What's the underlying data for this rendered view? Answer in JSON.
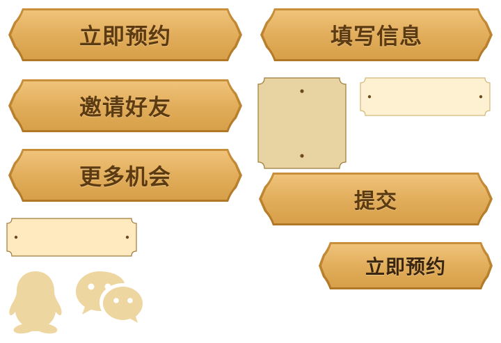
{
  "colors": {
    "plaque_gold": "#DDAA55",
    "plaque_text": "#5C3A12",
    "field_cream": "#FDF1D2",
    "field_tan": "#E8D3A2",
    "icon_tan": "#EED6A1"
  },
  "buttons": {
    "book_now": "立即预约",
    "fill_info": "填写信息",
    "invite_friends": "邀请好友",
    "more_chances": "更多机会",
    "submit": "提交",
    "book_now_small": "立即预约"
  },
  "icons": {
    "qq": "qq-penguin-icon",
    "wechat": "wechat-icon"
  }
}
